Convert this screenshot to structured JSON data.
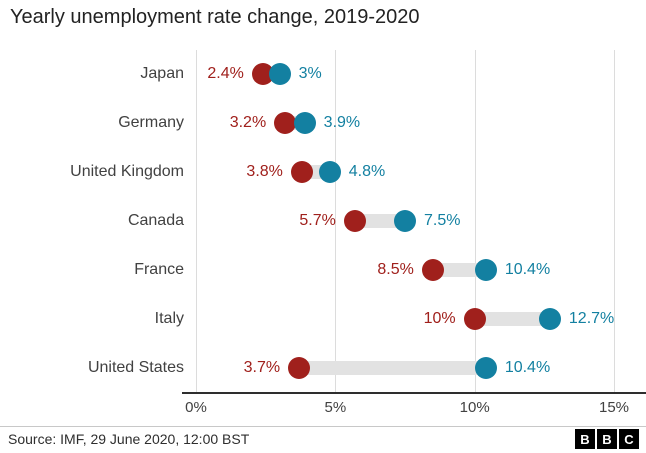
{
  "title": "Yearly unemployment rate change, 2019-2020",
  "source": "Source: IMF, 29 June 2020, 12:00 BST",
  "logo": {
    "b1": "B",
    "b2": "B",
    "b3": "C"
  },
  "colors": {
    "start": "#a0201c",
    "end": "#1380a1",
    "connector": "#e2e2e2",
    "grid": "#dcdcdc",
    "axis": "#2e2e2e",
    "label": "#414141"
  },
  "chart_data": {
    "type": "dumbbell",
    "title": "Yearly unemployment rate change, 2019-2020",
    "categories": [
      "Japan",
      "Germany",
      "United Kingdom",
      "Canada",
      "France",
      "Italy",
      "United States"
    ],
    "series": [
      {
        "name": "2019",
        "color": "#a0201c",
        "values": [
          2.4,
          3.2,
          3.8,
          5.7,
          8.5,
          10,
          3.7
        ],
        "labels": [
          "2.4%",
          "3.2%",
          "3.8%",
          "5.7%",
          "8.5%",
          "10%",
          "3.7%"
        ]
      },
      {
        "name": "2020",
        "color": "#1380a1",
        "values": [
          3,
          3.9,
          4.8,
          7.5,
          10.4,
          12.7,
          10.4
        ],
        "labels": [
          "3%",
          "3.9%",
          "4.8%",
          "7.5%",
          "10.4%",
          "12.7%",
          "10.4%"
        ]
      }
    ],
    "x_ticks": [
      "0%",
      "5%",
      "10%",
      "15%"
    ],
    "x_tick_values": [
      0,
      5,
      10,
      15
    ],
    "xlim": [
      0,
      15
    ],
    "grid": true,
    "legend": false
  }
}
